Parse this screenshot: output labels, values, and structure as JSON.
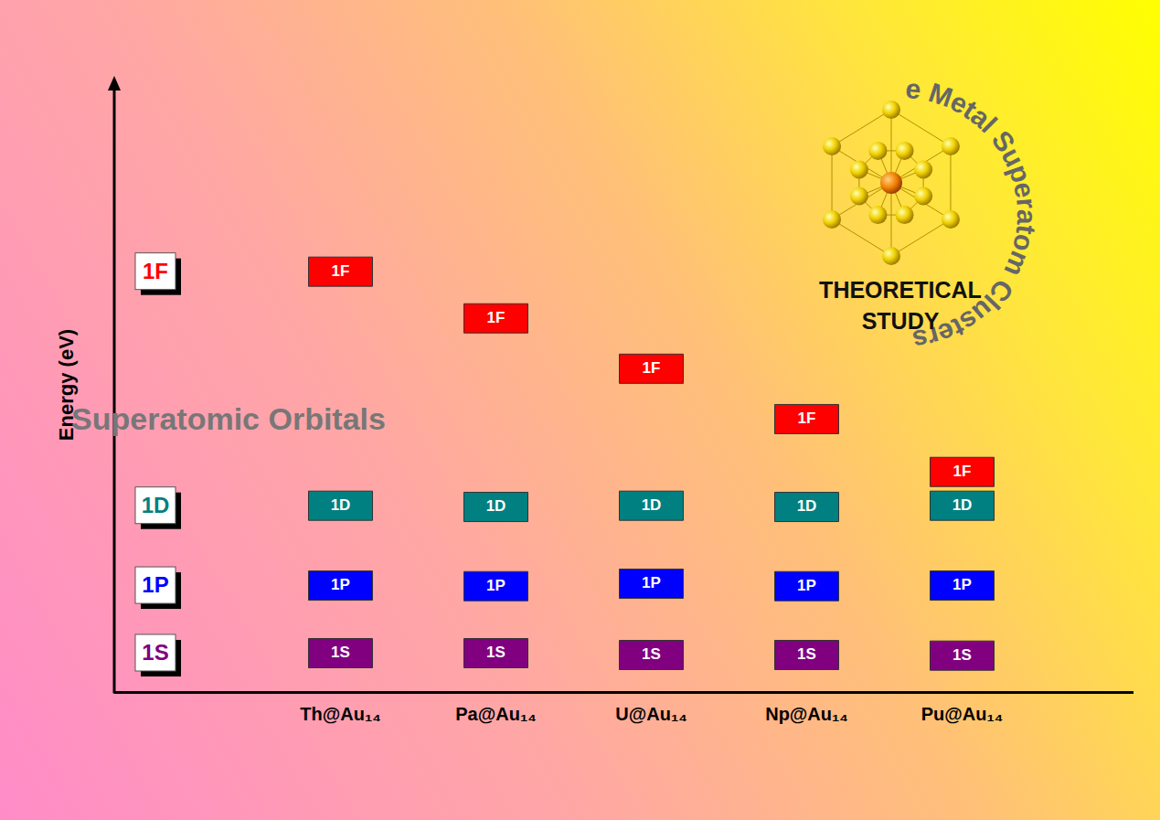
{
  "chart_data": {
    "type": "level",
    "y_label": "Energy (eV)",
    "categories": [
      "Th@Au₁₄",
      "Pa@Au₁₄",
      "U@Au₁₄",
      "Np@Au₁₄",
      "Pu@Au₁₄"
    ],
    "series": [
      {
        "name": "1F",
        "color": "#ff0000",
        "values": [
          6.85,
          6.09,
          5.27,
          4.45,
          3.59
        ]
      },
      {
        "name": "1D",
        "color": "#008080",
        "values": [
          3.04,
          3.02,
          3.04,
          3.02,
          3.04
        ]
      },
      {
        "name": "1P",
        "color": "#0000ff",
        "values": [
          1.74,
          1.73,
          1.77,
          1.73,
          1.74
        ]
      },
      {
        "name": "1S",
        "color": "#800080",
        "values": [
          0.64,
          0.64,
          0.61,
          0.61,
          0.6
        ]
      }
    ],
    "ylim": [
      0,
      10
    ],
    "yticks": [],
    "tick_labels": "x",
    "legend": "left",
    "annotations": [
      "Superatomic Orbitals",
      "Actinide-embedded Coinage Metal Superatom Clusters",
      "THEORETICAL",
      "STUDY"
    ]
  }
}
